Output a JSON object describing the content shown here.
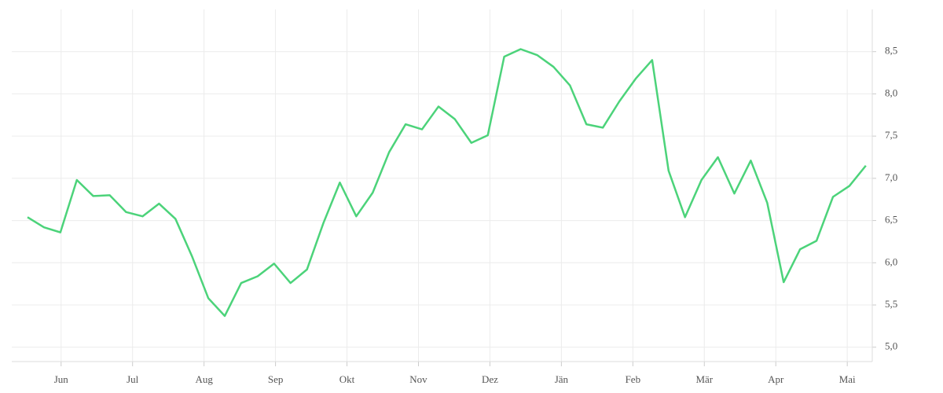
{
  "chart_data": {
    "type": "line",
    "x": [
      0.53,
      0.76,
      0.99,
      1.22,
      1.45,
      1.68,
      1.91,
      2.14,
      2.37,
      2.6,
      2.83,
      3.06,
      3.29,
      3.52,
      3.75,
      3.98,
      4.21,
      4.44,
      4.67,
      4.9,
      5.13,
      5.36,
      5.59,
      5.82,
      6.05,
      6.28,
      6.51,
      6.74,
      6.97,
      7.2,
      7.43,
      7.66,
      7.89,
      8.12,
      8.35,
      8.58,
      8.81,
      9.04,
      9.27,
      9.5,
      9.73,
      9.96,
      10.19,
      10.42,
      10.65,
      10.88,
      11.11,
      11.34,
      11.57,
      11.8,
      12.03,
      12.26
    ],
    "series": [
      {
        "color": "#4cd37a",
        "values": [
          6.54,
          6.42,
          6.36,
          6.98,
          6.79,
          6.8,
          6.6,
          6.55,
          6.7,
          6.52,
          6.08,
          5.58,
          5.37,
          5.76,
          5.84,
          5.99,
          5.76,
          5.92,
          6.47,
          6.95,
          6.55,
          6.83,
          7.31,
          7.64,
          7.58,
          7.85,
          7.7,
          7.42,
          7.51,
          8.44,
          8.53,
          8.46,
          8.32,
          8.1,
          7.64,
          7.6,
          7.91,
          8.18,
          8.4,
          7.09,
          6.54,
          6.98,
          7.25,
          6.82,
          7.21,
          6.71,
          5.77,
          6.16,
          6.26,
          6.78,
          6.91,
          7.15
        ]
      }
    ],
    "xlim": [
      0.31,
      12.35
    ],
    "xticks": [
      {
        "value": 1,
        "label": "Jun"
      },
      {
        "value": 2,
        "label": "Jul"
      },
      {
        "value": 3,
        "label": "Aug"
      },
      {
        "value": 4,
        "label": "Sep"
      },
      {
        "value": 5,
        "label": "Okt"
      },
      {
        "value": 6,
        "label": "Nov"
      },
      {
        "value": 7,
        "label": "Dez"
      },
      {
        "value": 8,
        "label": "Jän"
      },
      {
        "value": 9,
        "label": "Feb"
      },
      {
        "value": 10,
        "label": "Mär"
      },
      {
        "value": 11,
        "label": "Apr"
      },
      {
        "value": 12,
        "label": "Mai"
      }
    ],
    "ylim": [
      4.83,
      9.0
    ],
    "yticks": [
      {
        "value": 5,
        "label": "5,0"
      },
      {
        "value": 5.5,
        "label": "5,5"
      },
      {
        "value": 6,
        "label": "6,0"
      },
      {
        "value": 6.5,
        "label": "6,5"
      },
      {
        "value": 7,
        "label": "7,0"
      },
      {
        "value": 7.5,
        "label": "7,5"
      },
      {
        "value": 8,
        "label": "8,0"
      },
      {
        "value": 8.5,
        "label": "8,5"
      }
    ],
    "grid": true
  }
}
